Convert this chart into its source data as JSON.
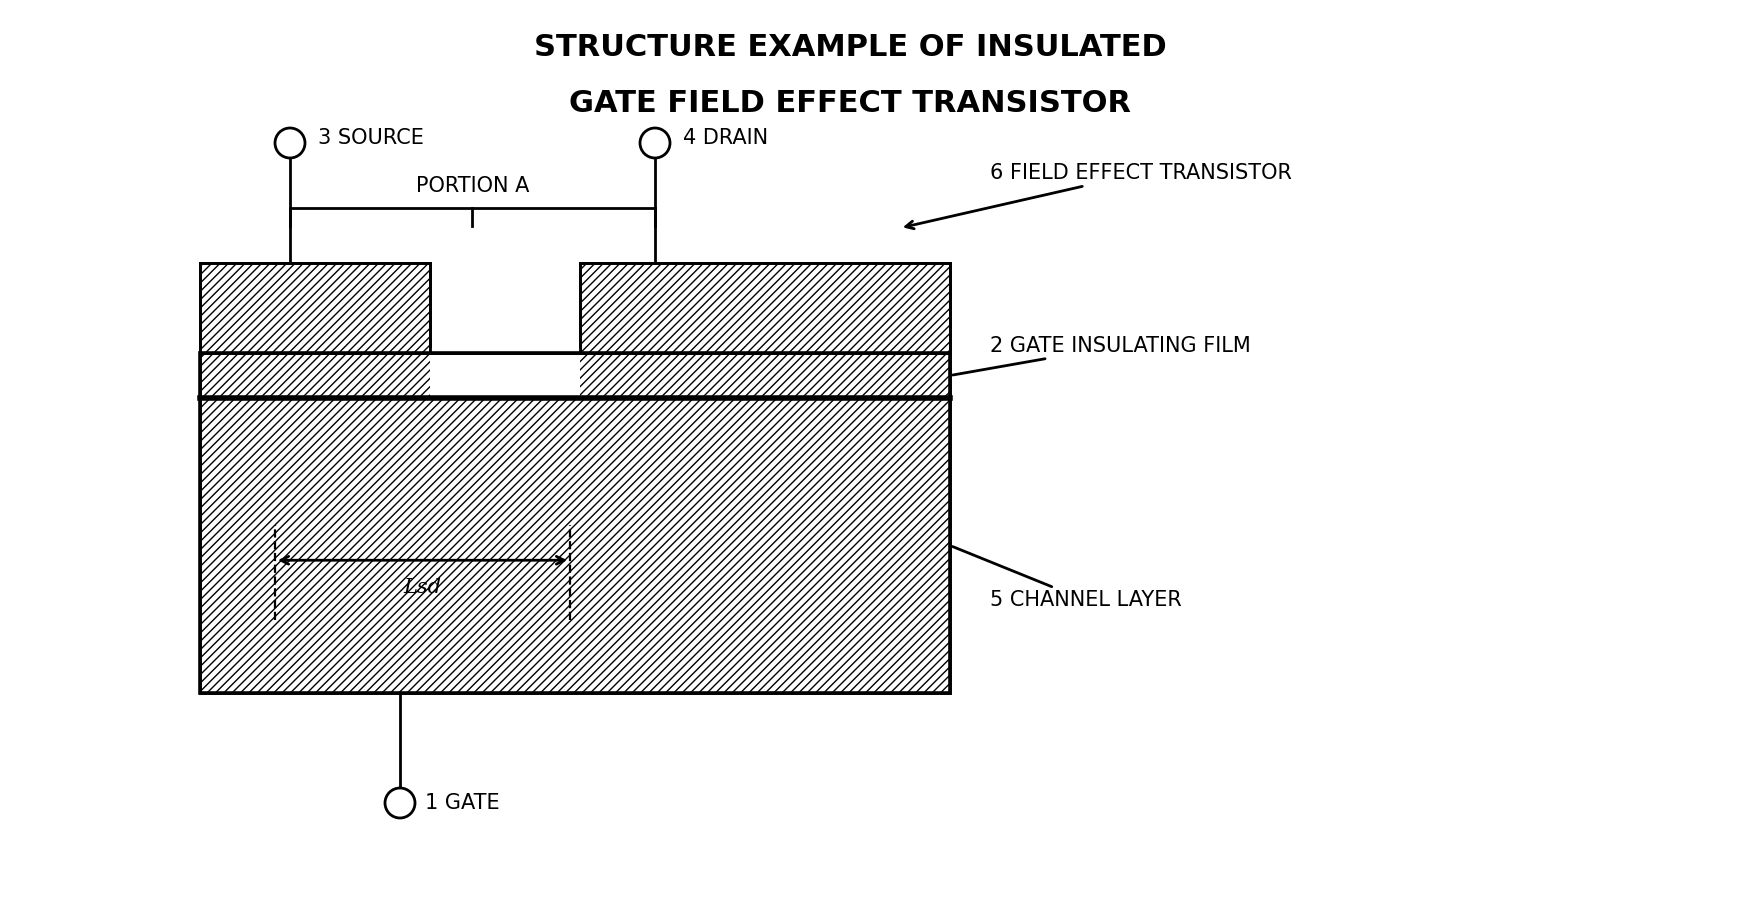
{
  "title_line1": "STRUCTURE EXAMPLE OF INSULATED",
  "title_line2": "GATE FIELD EFFECT TRANSISTOR",
  "background_color": "#ffffff",
  "line_color": "#000000",
  "labels": {
    "gate": "1 GATE",
    "gate_insulating_film": "2 GATE INSULATING FILM",
    "source": "3 SOURCE",
    "drain": "4 DRAIN",
    "channel_layer": "5 CHANNEL LAYER",
    "fet": "6 FIELD EFFECT TRANSISTOR",
    "portion_a": "PORTION A",
    "lsd": "Lsd"
  },
  "figsize": [
    17.46,
    9.13
  ],
  "dpi": 100
}
